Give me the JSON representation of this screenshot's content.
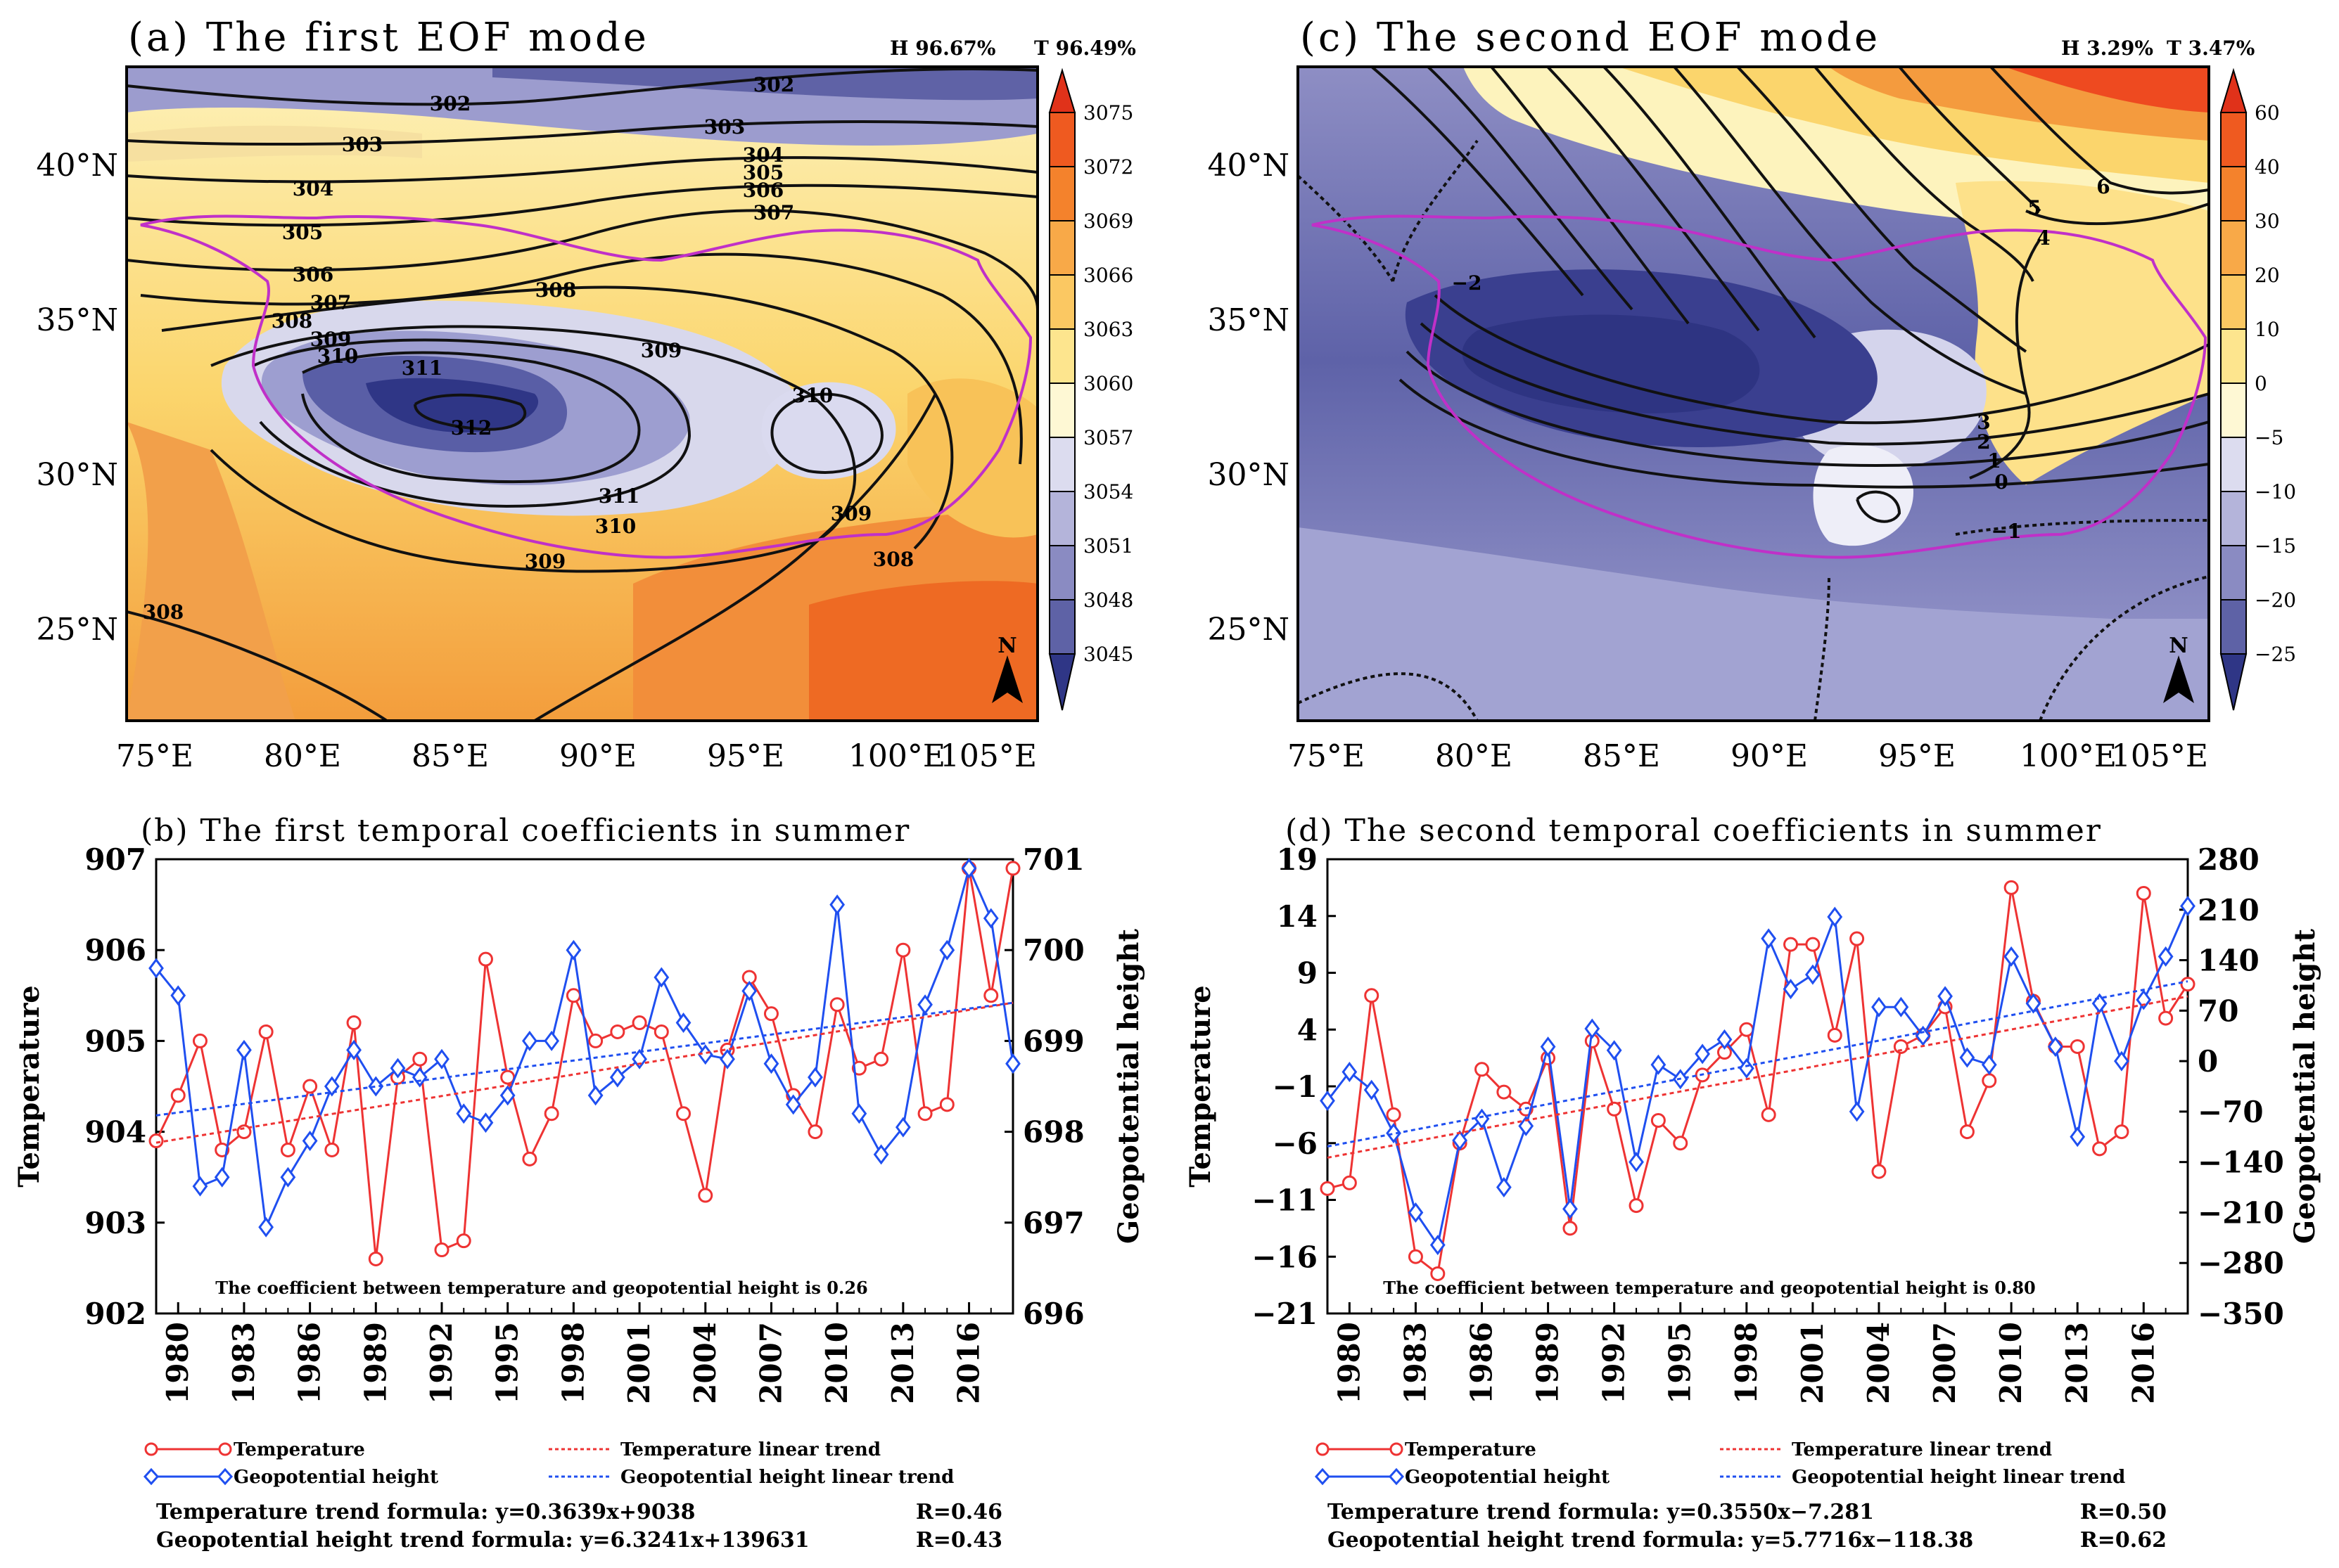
{
  "figure": {
    "panel_a": {
      "title": "(a) The first EOF mode",
      "h_label": "H 96.67%",
      "t_label": "T 96.49%",
      "lat_labels": [
        "40°N",
        "35°N",
        "30°N",
        "25°N"
      ],
      "lon_labels": [
        "75°E",
        "80°E",
        "85°E",
        "90°E",
        "95°E",
        "100°E",
        "105°E"
      ],
      "colorbar_labels": [
        "3075",
        "3072",
        "3069",
        "3066",
        "3063",
        "3060",
        "3057",
        "3054",
        "3051",
        "3048",
        "3045"
      ],
      "contour_labels": [
        "302",
        "302",
        "303",
        "303",
        "304",
        "304",
        "305",
        "305",
        "306",
        "306",
        "307",
        "307",
        "308",
        "308",
        "308",
        "309",
        "309",
        "309",
        "309",
        "310",
        "310",
        "310",
        "311",
        "311",
        "312",
        "308"
      ],
      "north_label": "N"
    },
    "panel_c": {
      "title": "(c) The second EOF mode",
      "h_label": "H 3.29%",
      "t_label": "T 3.47%",
      "lat_labels": [
        "40°N",
        "35°N",
        "30°N",
        "25°N"
      ],
      "lon_labels": [
        "75°E",
        "80°E",
        "85°E",
        "90°E",
        "95°E",
        "100°E",
        "105°E"
      ],
      "colorbar_labels": [
        "60",
        "40",
        "30",
        "20",
        "10",
        "0",
        "−5",
        "−10",
        "−15",
        "−20",
        "−25"
      ],
      "contour_labels": [
        "6",
        "5",
        "4",
        "3",
        "2",
        "1",
        "0",
        "−1",
        "−2"
      ],
      "north_label": "N"
    },
    "panel_b": {
      "legend_temp": "Temperature",
      "legend_gph": "Geopotential height",
      "legend_temp_trend": "Temperature linear trend",
      "legend_gph_trend": "Geopotential height linear trend",
      "formula_temp": "Temperature trend formula: y=0.3639x+9038",
      "r_temp": "R=0.46",
      "formula_gph": "Geopotential height trend formula: y=6.3241x+139631",
      "r_gph": "R=0.43"
    },
    "panel_d": {
      "legend_temp": "Temperature",
      "legend_gph": "Geopotential height",
      "legend_temp_trend": "Temperature linear trend",
      "legend_gph_trend": "Geopotential height linear trend",
      "formula_temp": "Temperature trend formula: y=0.3550x−7.281",
      "r_temp": "R=0.50",
      "formula_gph": "Geopotential height trend formula: y=5.7716x−118.38",
      "r_gph": "R=0.62"
    }
  },
  "colors": {
    "temperature": "#ee3333",
    "geopotential": "#1f4ff0",
    "boundary": "#c030c8"
  },
  "chart_data": [
    {
      "id": "b",
      "type": "line",
      "title": "(b) The first temporal coefficients in summer",
      "xlabel": "",
      "ylabel_left": "Temperature",
      "ylabel_right": "Geopotential height",
      "xlim": [
        1979,
        2018
      ],
      "ylim_left": [
        902,
        907
      ],
      "ylim_right": [
        696,
        701
      ],
      "x_ticks": [
        1980,
        1983,
        1986,
        1989,
        1992,
        1995,
        1998,
        2001,
        2004,
        2007,
        2010,
        2013,
        2016
      ],
      "y_ticks_left": [
        "902",
        "903",
        "904",
        "905",
        "906",
        "907"
      ],
      "y_ticks_right": [
        "696",
        "697",
        "698",
        "699",
        "700",
        "701"
      ],
      "annotation": "The coefficient between temperature and geopotential height is 0.26",
      "x": [
        1979,
        1980,
        1981,
        1982,
        1983,
        1984,
        1985,
        1986,
        1987,
        1988,
        1989,
        1990,
        1991,
        1992,
        1993,
        1994,
        1995,
        1996,
        1997,
        1998,
        1999,
        2000,
        2001,
        2002,
        2003,
        2004,
        2005,
        2006,
        2007,
        2008,
        2009,
        2010,
        2011,
        2012,
        2013,
        2014,
        2015,
        2016,
        2017,
        2018
      ],
      "series": [
        {
          "name": "Temperature",
          "axis": "left",
          "color": "#ee3333",
          "marker": "circle",
          "values": [
            903.9,
            904.4,
            905.0,
            903.8,
            904.0,
            905.1,
            903.8,
            904.5,
            903.8,
            905.2,
            902.6,
            904.6,
            904.8,
            902.7,
            902.8,
            905.9,
            904.6,
            903.7,
            904.2,
            905.5,
            905.0,
            905.1,
            905.2,
            905.1,
            904.2,
            903.3,
            904.9,
            905.7,
            905.3,
            904.4,
            904.0,
            905.4,
            904.7,
            904.8,
            906.0,
            904.2,
            904.3,
            906.9,
            905.5,
            906.9
          ]
        },
        {
          "name": "Geopotential height",
          "axis": "right",
          "color": "#1f4ff0",
          "marker": "diamond",
          "values": [
            699.8,
            699.5,
            697.4,
            697.5,
            698.9,
            696.95,
            697.5,
            697.9,
            698.5,
            698.9,
            698.5,
            698.7,
            698.6,
            698.8,
            698.2,
            698.1,
            698.4,
            699.0,
            699.0,
            700.0,
            698.4,
            698.6,
            698.8,
            699.7,
            699.2,
            698.85,
            698.8,
            699.55,
            698.75,
            698.3,
            698.6,
            700.5,
            698.2,
            697.75,
            698.05,
            699.4,
            700.0,
            700.9,
            700.35,
            698.75
          ]
        },
        {
          "name": "Temperature linear trend",
          "axis": "left",
          "color": "#ee3333",
          "style": "dashed",
          "values_at_ends": [
            903.88,
            905.42
          ]
        },
        {
          "name": "Geopotential height linear trend",
          "axis": "right",
          "color": "#1f4ff0",
          "style": "dashed",
          "values_at_ends": [
            698.18,
            699.42
          ]
        }
      ]
    },
    {
      "id": "d",
      "type": "line",
      "title": "(d) The second temporal coefficients in summer",
      "xlabel": "",
      "ylabel_left": "Temperature",
      "ylabel_right": "Geopotential height",
      "xlim": [
        1979,
        2018
      ],
      "ylim_left": [
        -21,
        19
      ],
      "ylim_right": [
        -350,
        280
      ],
      "x_ticks": [
        1980,
        1983,
        1986,
        1989,
        1992,
        1995,
        1998,
        2001,
        2004,
        2007,
        2010,
        2013,
        2016
      ],
      "y_ticks_left": [
        "−21",
        "−16",
        "−11",
        "−6",
        "−1",
        "4",
        "9",
        "14",
        "19"
      ],
      "y_ticks_right": [
        "−350",
        "−280",
        "−210",
        "−140",
        "−70",
        "0",
        "70",
        "140",
        "210",
        "280"
      ],
      "annotation": "The coefficient between temperature and geopotential height is 0.80",
      "x": [
        1979,
        1980,
        1981,
        1982,
        1983,
        1984,
        1985,
        1986,
        1987,
        1988,
        1989,
        1990,
        1991,
        1992,
        1993,
        1994,
        1995,
        1996,
        1997,
        1998,
        1999,
        2000,
        2001,
        2002,
        2003,
        2004,
        2005,
        2006,
        2007,
        2008,
        2009,
        2010,
        2011,
        2012,
        2013,
        2014,
        2015,
        2016,
        2017,
        2018
      ],
      "series": [
        {
          "name": "Temperature",
          "axis": "left",
          "color": "#ee3333",
          "marker": "circle",
          "values": [
            -10,
            -9.5,
            7,
            -3.5,
            -16,
            -17.5,
            -6,
            0.5,
            -1.5,
            -3,
            1.5,
            -13.5,
            3,
            -3,
            -11.5,
            -4,
            -6,
            0,
            2,
            4,
            -3.5,
            11.5,
            11.5,
            3.5,
            12,
            -8.5,
            2.5,
            3.5,
            6,
            -5,
            -0.5,
            16.5,
            6.5,
            2.5,
            2.5,
            -6.5,
            -5,
            16,
            5,
            8
          ]
        },
        {
          "name": "Geopotential height",
          "axis": "right",
          "color": "#1f4ff0",
          "marker": "diamond",
          "values": [
            -55,
            -15,
            -40,
            -100,
            -210,
            -255,
            -110,
            -80,
            -175,
            -90,
            20,
            -205,
            45,
            15,
            -140,
            -5,
            -25,
            10,
            30,
            -10,
            170,
            100,
            120,
            200,
            -70,
            75,
            75,
            35,
            90,
            5,
            -5,
            145,
            80,
            20,
            -105,
            80,
            0,
            85,
            145,
            215
          ]
        },
        {
          "name": "Temperature linear trend",
          "axis": "left",
          "color": "#ee3333",
          "style": "dashed",
          "values_at_ends": [
            -7.28,
            6.92
          ]
        },
        {
          "name": "Geopotential height linear trend",
          "axis": "right",
          "color": "#1f4ff0",
          "style": "dashed",
          "values_at_ends": [
            -118.4,
            110.7
          ]
        }
      ]
    }
  ]
}
